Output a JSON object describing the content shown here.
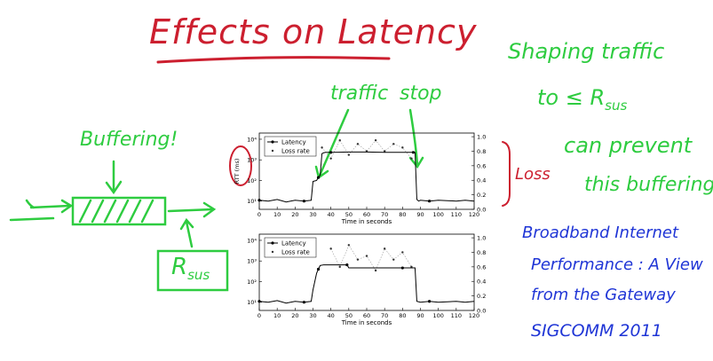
{
  "slide": {
    "title": "Effects on Latency",
    "buffering_label": "Buffering!",
    "rate_label": "R",
    "rate_subscript": "sus",
    "traffic_label": "traffic",
    "stop_label": "stop",
    "loss_label": "Loss",
    "right_note": [
      "Shaping traffic",
      "to ≤ R",
      "can prevent",
      "this buffering"
    ],
    "right_note_sub": "sus",
    "citation": [
      "Broadband Internet",
      "Performance : A View",
      "from the Gateway",
      "SIGCOMM 2011"
    ]
  },
  "colors": {
    "red": "#cc1f2f",
    "green": "#2ecc40",
    "blue": "#1f35d6"
  },
  "chart_data": [
    {
      "type": "line",
      "xlabel": "Time in seconds",
      "ylabel": "RTT (ms)",
      "y2label": "",
      "x_ticks": [
        "0",
        "10",
        "20",
        "30",
        "40",
        "50",
        "60",
        "70",
        "80",
        "90",
        "100",
        "110",
        "120"
      ],
      "y_ticks_left": [
        "10¹",
        "10²",
        "10³",
        "10⁴"
      ],
      "y_ticks_right": [
        "0.0",
        "0.2",
        "0.4",
        "0.6",
        "0.8",
        "1.0"
      ],
      "xlim": [
        0,
        120
      ],
      "ylim_log10": [
        0.6,
        4.3
      ],
      "y2lim": [
        0,
        1.05
      ],
      "legend": [
        "Latency",
        "Loss rate"
      ],
      "series": [
        {
          "name": "Latency",
          "x": [
            0,
            5,
            10,
            15,
            20,
            25,
            29,
            30,
            31,
            32,
            33,
            34,
            35,
            36,
            37,
            40,
            50,
            60,
            70,
            80,
            86,
            87,
            88,
            89,
            90,
            95,
            100,
            110,
            115,
            120
          ],
          "y": [
            11,
            10,
            12,
            9,
            11,
            10,
            11,
            90,
            95,
            100,
            140,
            180,
            2000,
            2200,
            2300,
            2300,
            2400,
            2400,
            2300,
            2300,
            2300,
            2300,
            12,
            10,
            11,
            10,
            11,
            10,
            11,
            10
          ]
        },
        {
          "name": "Loss rate",
          "x": [
            35,
            40,
            45,
            50,
            55,
            60,
            65,
            70,
            75,
            80,
            85
          ],
          "y": [
            0.85,
            0.7,
            0.95,
            0.75,
            0.9,
            0.8,
            0.95,
            0.8,
            0.9,
            0.85,
            0.7
          ]
        }
      ]
    },
    {
      "type": "line",
      "xlabel": "Time in seconds",
      "ylabel": "",
      "y2label": "",
      "x_ticks": [
        "0",
        "10",
        "20",
        "30",
        "40",
        "50",
        "60",
        "70",
        "80",
        "90",
        "100",
        "110",
        "120"
      ],
      "y_ticks_left": [
        "10¹",
        "10²",
        "10³",
        "10⁴"
      ],
      "y_ticks_right": [
        "0.0",
        "0.2",
        "0.4",
        "0.6",
        "0.8",
        "1.0"
      ],
      "xlim": [
        0,
        120
      ],
      "ylim_log10": [
        0.6,
        4.3
      ],
      "y2lim": [
        0,
        1.05
      ],
      "legend": [
        "Latency",
        "Loss rate"
      ],
      "series": [
        {
          "name": "Latency",
          "x": [
            0,
            5,
            10,
            15,
            20,
            25,
            29,
            30,
            31,
            32,
            33,
            34,
            36,
            40,
            45,
            49,
            50,
            55,
            60,
            70,
            80,
            86,
            87,
            88,
            90,
            95,
            100,
            110,
            115,
            120
          ],
          "y": [
            11,
            10,
            12,
            9,
            11,
            10,
            11,
            40,
            100,
            250,
            400,
            600,
            650,
            650,
            650,
            650,
            460,
            460,
            460,
            460,
            460,
            460,
            460,
            11,
            10,
            11,
            10,
            11,
            10,
            11
          ]
        },
        {
          "name": "Loss rate",
          "x": [
            40,
            45,
            50,
            55,
            60,
            65,
            70,
            75,
            80,
            85
          ],
          "y": [
            0.85,
            0.6,
            0.9,
            0.7,
            0.75,
            0.55,
            0.85,
            0.7,
            0.8,
            0.6
          ]
        }
      ]
    }
  ]
}
